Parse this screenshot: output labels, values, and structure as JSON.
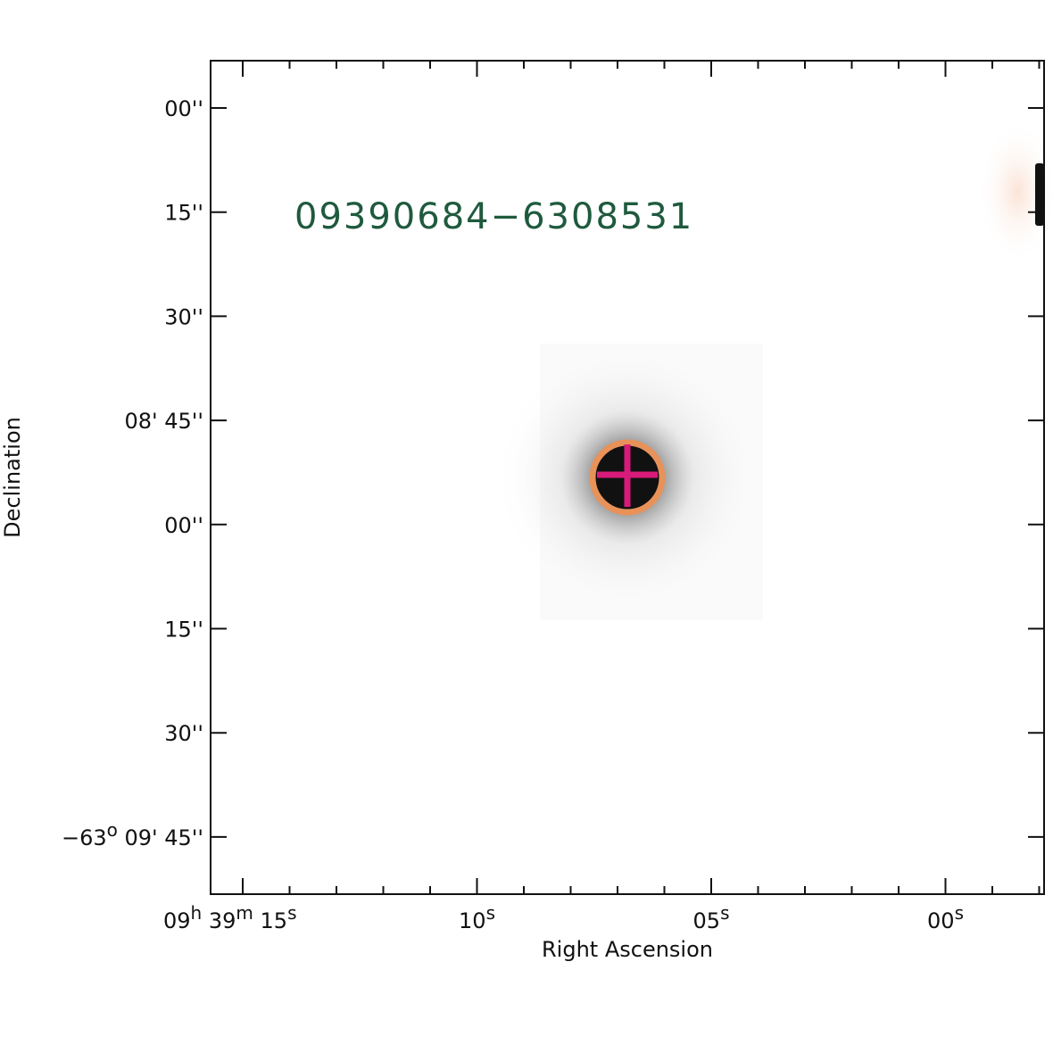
{
  "object_label": "09390684−6308531",
  "x_axis": {
    "label": "Right Ascension",
    "ticks": [
      [
        "09",
        "h",
        " 39",
        "m",
        " 15",
        "s"
      ],
      [
        "10",
        "s"
      ],
      [
        "05",
        "s"
      ],
      [
        "00",
        "s"
      ]
    ]
  },
  "y_axis": {
    "label": "Declination",
    "ticks": [
      [
        "00''"
      ],
      [
        "15''"
      ],
      [
        "30''"
      ],
      [
        "08' 45''"
      ],
      [
        "00''"
      ],
      [
        "15''"
      ],
      [
        "30''"
      ],
      [
        "−63",
        "o",
        " 09' 45''"
      ]
    ]
  }
}
